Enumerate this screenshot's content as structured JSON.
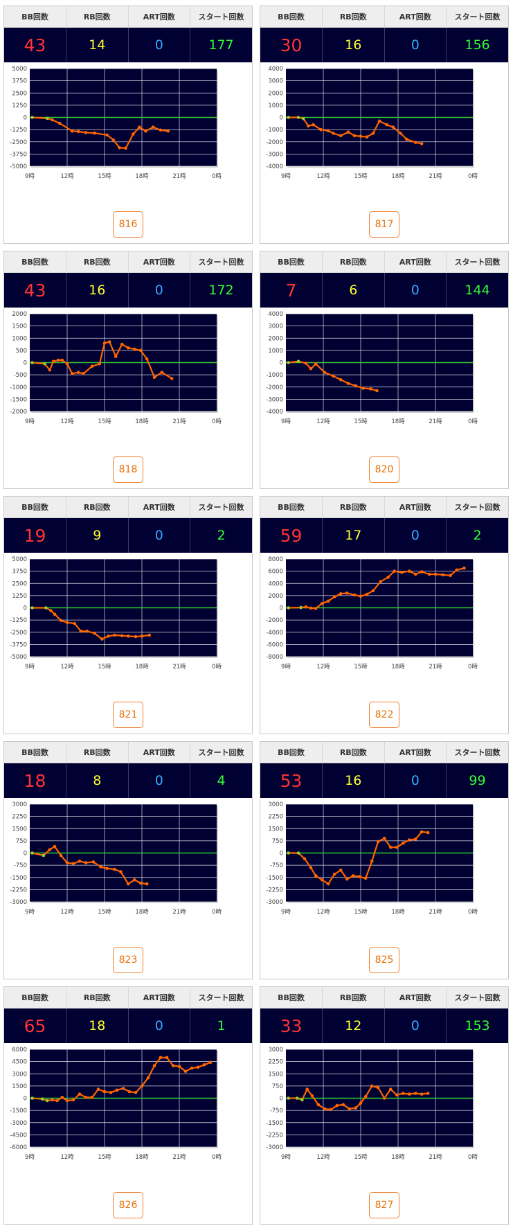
{
  "headers": {
    "bb": "BB回数",
    "rb": "RB回数",
    "art": "ART回数",
    "start": "スタート回数"
  },
  "time_ticks": [
    "9時",
    "12時",
    "15時",
    "18時",
    "21時",
    "0時"
  ],
  "colors": {
    "plot_bg": "#000033",
    "zero_line": "#33cc33",
    "series": "#ff6600",
    "early_points": "#99cc33",
    "grid": "#ffffff"
  },
  "cards": [
    {
      "machine": "816",
      "bb": "43",
      "rb": "14",
      "art": "0",
      "start": "177",
      "chart_data": {
        "type": "line",
        "x_unit": "hour",
        "xlim": [
          9,
          24
        ],
        "ylim": [
          -5000,
          5000
        ],
        "yticks": [
          5000,
          3750,
          2500,
          1250,
          0,
          -1250,
          -2500,
          -3750,
          -5000
        ],
        "x": [
          9.2,
          10.4,
          10.8,
          11.4,
          12.4,
          12.9,
          13.5,
          14.2,
          15.2,
          15.7,
          16.2,
          16.7,
          17.3,
          17.8,
          18.3,
          18.9,
          19.5,
          20.1
        ],
        "y": [
          0,
          -100,
          -250,
          -600,
          -1400,
          -1450,
          -1550,
          -1600,
          -1800,
          -2300,
          -3100,
          -3150,
          -1700,
          -1000,
          -1400,
          -1000,
          -1300,
          -1400
        ]
      }
    },
    {
      "machine": "817",
      "bb": "30",
      "rb": "16",
      "art": "0",
      "start": "156",
      "chart_data": {
        "type": "line",
        "x_unit": "hour",
        "xlim": [
          9,
          24
        ],
        "ylim": [
          -4000,
          4000
        ],
        "yticks": [
          4000,
          3000,
          2000,
          1000,
          0,
          -1000,
          -2000,
          -3000,
          -4000
        ],
        "x": [
          9.2,
          10.0,
          10.4,
          10.8,
          11.2,
          11.8,
          12.4,
          12.8,
          13.4,
          14.0,
          14.5,
          15.0,
          15.5,
          16.0,
          16.5,
          17.1,
          17.6,
          18.2,
          18.7,
          19.4,
          19.9
        ],
        "y": [
          0,
          0,
          -100,
          -700,
          -600,
          -1000,
          -1100,
          -1300,
          -1500,
          -1200,
          -1500,
          -1550,
          -1600,
          -1300,
          -300,
          -600,
          -800,
          -1300,
          -1800,
          -2050,
          -2150
        ]
      }
    },
    {
      "machine": "818",
      "bb": "43",
      "rb": "16",
      "art": "0",
      "start": "172",
      "chart_data": {
        "type": "line",
        "x_unit": "hour",
        "xlim": [
          9,
          24
        ],
        "ylim": [
          -2000,
          2000
        ],
        "yticks": [
          2000,
          1500,
          1000,
          500,
          0,
          -500,
          -1000,
          -1500,
          -2000
        ],
        "x": [
          9.2,
          10.2,
          10.6,
          10.9,
          11.3,
          11.6,
          12.0,
          12.4,
          12.9,
          13.3,
          14.0,
          14.6,
          15.0,
          15.4,
          15.9,
          16.4,
          16.9,
          17.4,
          17.9,
          18.4,
          19.0,
          19.6,
          20.4
        ],
        "y": [
          0,
          -50,
          -300,
          50,
          100,
          100,
          -50,
          -450,
          -400,
          -450,
          -150,
          -50,
          800,
          850,
          250,
          750,
          600,
          550,
          500,
          150,
          -600,
          -400,
          -650
        ]
      }
    },
    {
      "machine": "820",
      "bb": "7",
      "rb": "6",
      "art": "0",
      "start": "144",
      "chart_data": {
        "type": "line",
        "x_unit": "hour",
        "xlim": [
          9,
          24
        ],
        "ylim": [
          -4000,
          4000
        ],
        "yticks": [
          4000,
          3000,
          2000,
          1000,
          0,
          -1000,
          -2000,
          -3000,
          -4000
        ],
        "x": [
          9.2,
          10.0,
          10.6,
          11.0,
          11.4,
          12.1,
          12.8,
          13.4,
          14.0,
          14.6,
          15.2,
          15.8,
          16.3
        ],
        "y": [
          0,
          100,
          -50,
          -500,
          -100,
          -800,
          -1100,
          -1400,
          -1700,
          -1900,
          -2100,
          -2150,
          -2300
        ]
      }
    },
    {
      "machine": "821",
      "bb": "19",
      "rb": "9",
      "art": "0",
      "start": "2",
      "chart_data": {
        "type": "line",
        "x_unit": "hour",
        "xlim": [
          9,
          24
        ],
        "ylim": [
          -5000,
          5000
        ],
        "yticks": [
          5000,
          3750,
          2500,
          1250,
          0,
          -1250,
          -2500,
          -3750,
          -5000
        ],
        "x": [
          9.2,
          10.3,
          10.7,
          11.0,
          11.5,
          12.0,
          12.6,
          13.1,
          13.6,
          14.2,
          14.8,
          15.3,
          15.8,
          16.4,
          16.9,
          17.5,
          18.0,
          18.6
        ],
        "y": [
          0,
          0,
          -300,
          -650,
          -1300,
          -1500,
          -1600,
          -2400,
          -2400,
          -2600,
          -3200,
          -2900,
          -2800,
          -2850,
          -2900,
          -2950,
          -2900,
          -2800
        ]
      }
    },
    {
      "machine": "822",
      "bb": "59",
      "rb": "17",
      "art": "0",
      "start": "2",
      "chart_data": {
        "type": "line",
        "x_unit": "hour",
        "xlim": [
          9,
          24
        ],
        "ylim": [
          -8000,
          8000
        ],
        "yticks": [
          8000,
          6000,
          4000,
          2000,
          0,
          -2000,
          -4000,
          -6000,
          -8000
        ],
        "x": [
          9.2,
          10.2,
          10.6,
          11.0,
          11.4,
          11.9,
          12.4,
          12.9,
          13.4,
          13.9,
          14.5,
          15.0,
          15.5,
          16.0,
          16.6,
          17.2,
          17.7,
          18.3,
          18.9,
          19.4,
          19.9,
          20.5,
          21.0,
          21.6,
          22.2,
          22.7,
          23.3
        ],
        "y": [
          0,
          50,
          150,
          -50,
          -100,
          700,
          1100,
          1800,
          2300,
          2400,
          2100,
          1900,
          2200,
          2800,
          4300,
          5000,
          6000,
          5800,
          6000,
          5500,
          5900,
          5500,
          5500,
          5400,
          5300,
          6200,
          6500
        ]
      }
    },
    {
      "machine": "823",
      "bb": "18",
      "rb": "8",
      "art": "0",
      "start": "4",
      "chart_data": {
        "type": "line",
        "x_unit": "hour",
        "xlim": [
          9,
          24
        ],
        "ylim": [
          -3000,
          3000
        ],
        "yticks": [
          3000,
          2250,
          1500,
          750,
          0,
          -750,
          -1500,
          -2250,
          -3000
        ],
        "x": [
          9.2,
          10.1,
          10.6,
          11.0,
          11.5,
          12.0,
          12.5,
          13.0,
          13.5,
          14.1,
          14.7,
          15.2,
          15.8,
          16.3,
          16.9,
          17.4,
          17.9,
          18.4
        ],
        "y": [
          0,
          -150,
          200,
          400,
          -150,
          -600,
          -650,
          -500,
          -600,
          -550,
          -850,
          -950,
          -1000,
          -1150,
          -1900,
          -1650,
          -1850,
          -1900
        ]
      }
    },
    {
      "machine": "825",
      "bb": "53",
      "rb": "16",
      "art": "0",
      "start": "99",
      "chart_data": {
        "type": "line",
        "x_unit": "hour",
        "xlim": [
          9,
          24
        ],
        "ylim": [
          -3000,
          3000
        ],
        "yticks": [
          3000,
          2250,
          1500,
          750,
          0,
          -750,
          -1500,
          -2250,
          -3000
        ],
        "x": [
          9.2,
          10.0,
          10.5,
          11.0,
          11.4,
          11.9,
          12.4,
          12.9,
          13.4,
          13.9,
          14.4,
          14.9,
          15.4,
          15.9,
          16.4,
          16.9,
          17.4,
          17.9,
          18.4,
          18.9,
          19.4,
          19.9,
          20.4
        ],
        "y": [
          0,
          0,
          -350,
          -900,
          -1400,
          -1650,
          -1900,
          -1300,
          -1050,
          -1600,
          -1400,
          -1450,
          -1550,
          -500,
          700,
          900,
          350,
          350,
          600,
          800,
          850,
          1300,
          1250
        ]
      }
    },
    {
      "machine": "826",
      "bb": "65",
      "rb": "18",
      "art": "0",
      "start": "1",
      "chart_data": {
        "type": "line",
        "x_unit": "hour",
        "xlim": [
          9,
          24
        ],
        "ylim": [
          -6000,
          6000
        ],
        "yticks": [
          6000,
          4500,
          3000,
          1500,
          0,
          -1500,
          -3000,
          -4500,
          -6000
        ],
        "x": [
          9.2,
          10.0,
          10.4,
          10.8,
          11.2,
          11.6,
          12.0,
          12.5,
          13.0,
          13.5,
          14.0,
          14.5,
          15.0,
          15.5,
          16.0,
          16.5,
          17.0,
          17.5,
          18.0,
          18.5,
          19.0,
          19.5,
          20.0,
          20.5,
          21.0,
          21.5,
          22.0,
          22.5,
          23.0,
          23.5
        ],
        "y": [
          0,
          -100,
          -300,
          -200,
          -300,
          100,
          -300,
          -200,
          500,
          100,
          100,
          1100,
          800,
          700,
          1000,
          1200,
          800,
          700,
          1500,
          2500,
          4000,
          5000,
          5000,
          4000,
          3900,
          3300,
          3700,
          3800,
          4100,
          4400
        ]
      }
    },
    {
      "machine": "827",
      "bb": "33",
      "rb": "12",
      "art": "0",
      "start": "153",
      "chart_data": {
        "type": "line",
        "x_unit": "hour",
        "xlim": [
          9,
          24
        ],
        "ylim": [
          -3000,
          3000
        ],
        "yticks": [
          3000,
          2250,
          1500,
          750,
          0,
          -750,
          -1500,
          -2250,
          -3000
        ],
        "x": [
          9.2,
          9.9,
          10.3,
          10.7,
          11.1,
          11.6,
          12.1,
          12.6,
          13.1,
          13.6,
          14.1,
          14.6,
          15.0,
          15.4,
          15.9,
          16.4,
          16.9,
          17.4,
          17.9,
          18.4,
          18.9,
          19.4,
          19.9,
          20.4
        ],
        "y": [
          0,
          0,
          -100,
          550,
          150,
          -400,
          -650,
          -700,
          -450,
          -400,
          -650,
          -600,
          -300,
          100,
          750,
          650,
          0,
          550,
          200,
          300,
          250,
          300,
          250,
          300
        ]
      }
    }
  ]
}
